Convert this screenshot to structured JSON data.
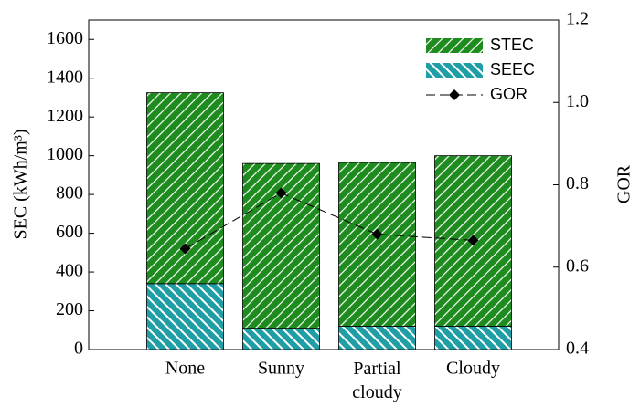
{
  "chart_data": {
    "type": "bar",
    "categories": [
      "None",
      "Sunny",
      "Partial cloudy",
      "Cloudy"
    ],
    "series": [
      {
        "name": "STEC",
        "color": "#1e8b1e",
        "values": [
          985,
          850,
          845,
          880
        ]
      },
      {
        "name": "SEEC",
        "color": "#1f9ea6",
        "values": [
          340,
          110,
          120,
          120
        ]
      },
      {
        "name": "GOR",
        "color": "#000000",
        "axis": "y2",
        "values": [
          0.645,
          0.78,
          0.68,
          0.665
        ]
      }
    ],
    "ylabel": "SEC (kWh/m³)",
    "y2label": "GOR",
    "ylim": [
      0,
      1700
    ],
    "yticks": [
      0,
      200,
      400,
      600,
      800,
      1000,
      1200,
      1400,
      1600
    ],
    "y2lim": [
      0.4,
      1.2
    ],
    "y2ticks": [
      0.4,
      0.6,
      0.8,
      {
        "value": 1,
        "label": "1.0"
      },
      1.2
    ],
    "legend": "upper right"
  }
}
